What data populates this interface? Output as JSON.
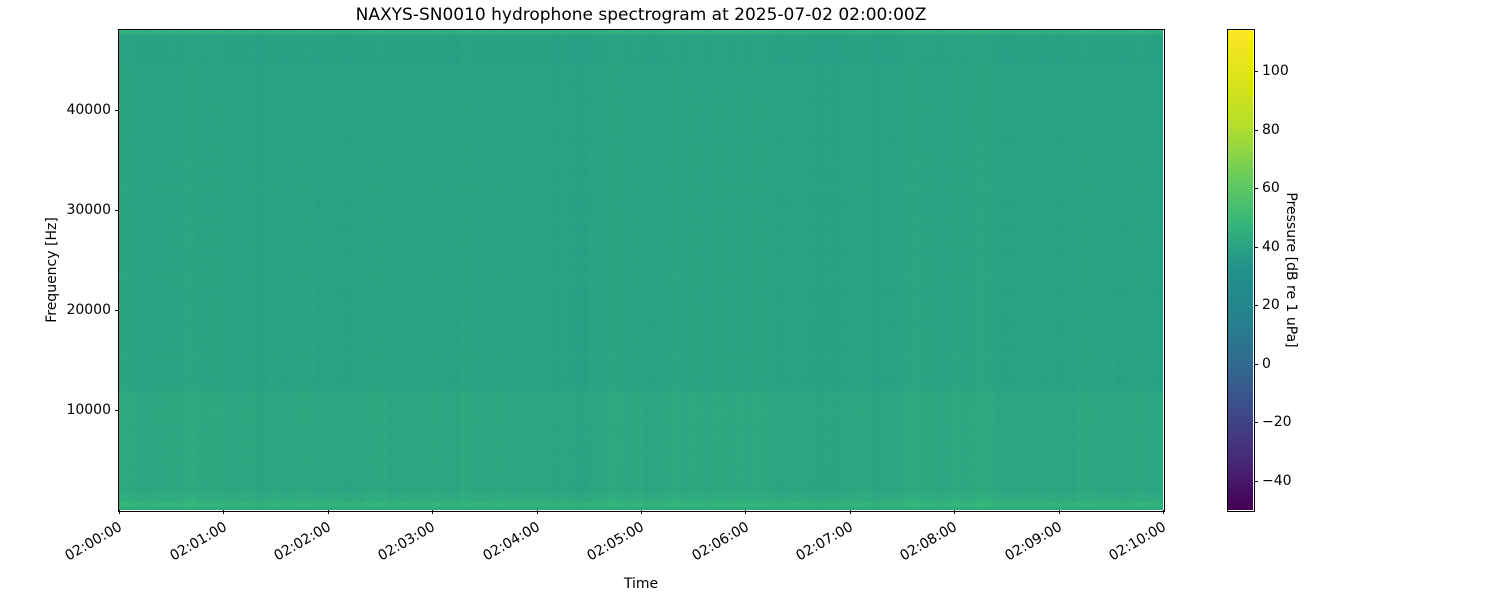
{
  "figure": {
    "background_color": "#ffffff",
    "text_color": "#000000"
  },
  "chart_data": {
    "type": "heatmap",
    "subtype": "spectrogram",
    "title": "NAXYS-SN0010 hydrophone spectrogram at 2025-07-02 02:00:00Z",
    "xlabel": "Time",
    "ylabel": "Frequency [Hz]",
    "grid": false,
    "x_ticks": [
      "02:00:00",
      "02:01:00",
      "02:02:00",
      "02:03:00",
      "02:04:00",
      "02:05:00",
      "02:06:00",
      "02:07:00",
      "02:08:00",
      "02:09:00",
      "02:10:00"
    ],
    "x_tick_rotation_deg": 30,
    "y_ticks": [
      {
        "label": "10000",
        "freq_hz": 10000
      },
      {
        "label": "20000",
        "freq_hz": 20000
      },
      {
        "label": "30000",
        "freq_hz": 30000
      },
      {
        "label": "40000",
        "freq_hz": 40000
      }
    ],
    "ylim_hz": [
      0,
      48000
    ],
    "colormap": "viridis",
    "colormap_stops": [
      "#440154",
      "#482878",
      "#3e4989",
      "#31688e",
      "#26828e",
      "#21918c",
      "#35b779",
      "#6dcd59",
      "#b4de2c",
      "#dde318",
      "#fde725"
    ],
    "colorbar": {
      "label": "Pressure [dB re 1 uPa]",
      "clim_db": [
        -50,
        114
      ],
      "ticks": [
        {
          "label": "100",
          "value": 100
        },
        {
          "label": "80",
          "value": 80
        },
        {
          "label": "60",
          "value": 60
        },
        {
          "label": "40",
          "value": 40
        },
        {
          "label": "20",
          "value": 20
        },
        {
          "label": "0",
          "value": 0
        },
        {
          "label": "−20",
          "value": -20
        },
        {
          "label": "−40",
          "value": -40
        }
      ]
    },
    "freq_profile_db": [
      {
        "freq_hz": [
          0,
          300
        ],
        "db": 43.0
      },
      {
        "freq_hz": [
          300,
          900
        ],
        "db": 47.0
      },
      {
        "freq_hz": [
          900,
          1600
        ],
        "db": 43.5
      },
      {
        "freq_hz": [
          1600,
          12000
        ],
        "db": 41.3
      },
      {
        "freq_hz": [
          12000,
          44500
        ],
        "db": 39.5
      },
      {
        "freq_hz": [
          44500,
          47600
        ],
        "db": 38.6
      },
      {
        "freq_hz": [
          47600,
          48000
        ],
        "db": 45.0
      }
    ],
    "column_noise_db": 1.3,
    "row_noise_db": 0.5,
    "base_body_color": "#21a485"
  }
}
